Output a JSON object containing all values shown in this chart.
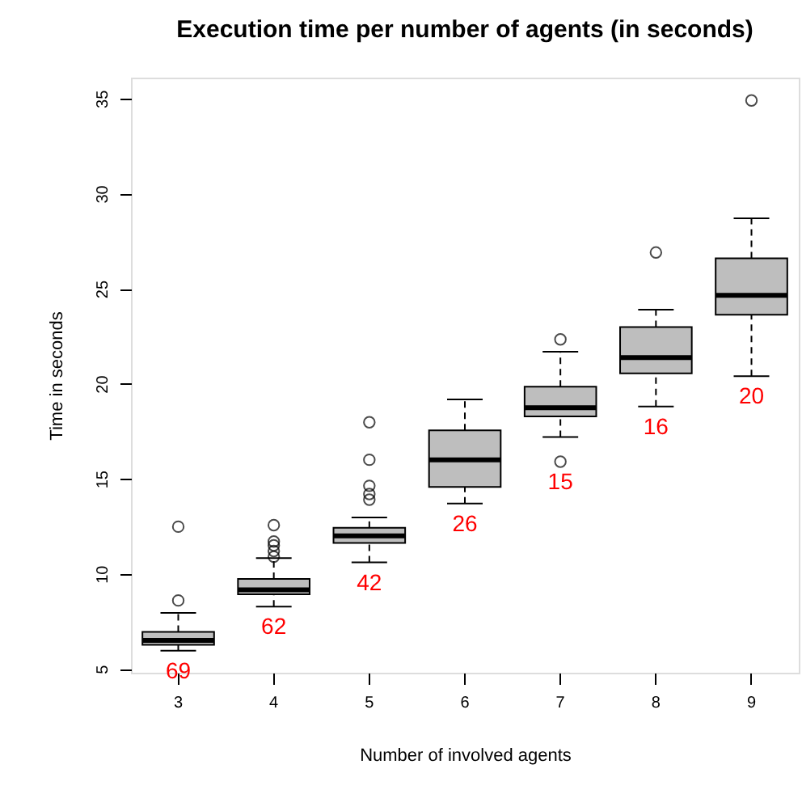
{
  "chart_data": {
    "type": "box",
    "title": "Execution time per number of agents (in seconds)",
    "xlabel": "Number of involved agents",
    "ylabel": "Time in seconds",
    "categories": [
      "3",
      "4",
      "5",
      "6",
      "7",
      "8",
      "9"
    ],
    "boxes": [
      {
        "low": 5.96,
        "q1": 6.27,
        "median": 6.5,
        "q3": 6.95,
        "high": 7.95,
        "outliers": [
          12.48,
          8.6
        ]
      },
      {
        "low": 8.28,
        "q1": 8.93,
        "median": 9.16,
        "q3": 9.73,
        "high": 10.83,
        "outliers": [
          12.56,
          11.7,
          11.5,
          11.2,
          10.9
        ]
      },
      {
        "low": 10.6,
        "q1": 11.63,
        "median": 12.0,
        "q3": 12.42,
        "high": 12.96,
        "outliers": [
          17.97,
          16.0,
          14.63,
          14.2,
          13.9
        ]
      },
      {
        "low": 13.7,
        "q1": 14.57,
        "median": 16.0,
        "q3": 17.55,
        "high": 19.17
      },
      {
        "low": 17.2,
        "q1": 18.28,
        "median": 18.74,
        "q3": 19.84,
        "high": 21.68,
        "outliers": [
          22.33,
          15.9
        ]
      },
      {
        "low": 18.8,
        "q1": 20.55,
        "median": 21.37,
        "q3": 22.98,
        "high": 23.9,
        "outliers": [
          26.9
        ]
      },
      {
        "low": 20.4,
        "q1": 23.63,
        "median": 24.65,
        "q3": 26.6,
        "high": 28.7,
        "outliers": [
          34.9
        ]
      }
    ],
    "color": "#bebebe",
    "ylim": [
      4.8,
      36.1
    ],
    "yticks": [
      5,
      10,
      15,
      20,
      25,
      30,
      35
    ],
    "grid": false,
    "line_style": "dashed",
    "marker": "circle",
    "annotations": [
      {
        "text": "69",
        "x": "3",
        "y": 5.96
      },
      {
        "text": "62",
        "x": "4",
        "y": 8.28
      },
      {
        "text": "42",
        "x": "5",
        "y": 10.6
      },
      {
        "text": "26",
        "x": "6",
        "y": 13.7
      },
      {
        "text": "15",
        "x": "7",
        "y": 17.2
      },
      {
        "text": "16",
        "x": "8",
        "y": 18.8
      },
      {
        "text": "20",
        "x": "9",
        "y": 20.4
      }
    ]
  }
}
